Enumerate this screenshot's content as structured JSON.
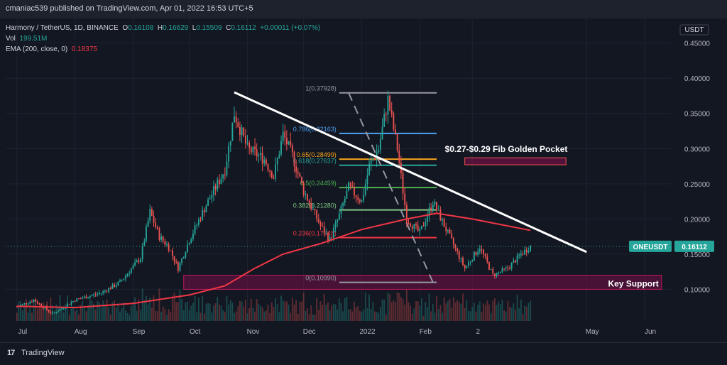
{
  "header": {
    "published": "cmaniac539 published on TradingView.com, Apr 01, 2022 16:53 UTC+5"
  },
  "legend": {
    "symbol": "Harmony / TetherUS, 1D, BINANCE",
    "o_label": "O",
    "o": "0.16108",
    "h_label": "H",
    "h": "0.16629",
    "l_label": "L",
    "l": "0.15509",
    "c_label": "C",
    "c": "0.16112",
    "change": "+0.00011 (+0.07%)",
    "vol_label": "Vol",
    "vol": "199.51M",
    "ema_label": "EMA (200, close, 0)",
    "ema": "0.18375"
  },
  "currency": "USDT",
  "price_tag": {
    "label": "ONEUSDT",
    "value": "0.16112"
  },
  "annotations": {
    "golden_pocket": "$0.27-$0.29 Fib Golden Pocket",
    "key_support": "Key Support"
  },
  "fib_levels": [
    {
      "label": "1(0.37928)",
      "value": 0.37928,
      "color": "#9598a1"
    },
    {
      "label": "0.786(0.32163)",
      "value": 0.32163,
      "color": "#4d9ff0"
    },
    {
      "label": "0.65(0.28499)",
      "value": 0.28499,
      "color": "#f7a21b"
    },
    {
      "label": "0.618(0.27637)",
      "value": 0.27637,
      "color": "#26a69a"
    },
    {
      "label": "0.5(0.24459)",
      "value": 0.24459,
      "color": "#4caf50"
    },
    {
      "label": "0.382(0.21280)",
      "value": 0.2128,
      "color": "#81c784"
    },
    {
      "label": "0.236(0.17348)",
      "value": 0.17348,
      "color": "#f23645"
    },
    {
      "label": "0(0.10990)",
      "value": 0.1099,
      "color": "#9598a1"
    }
  ],
  "colors": {
    "up": "#26a69a",
    "down": "#ef5350",
    "ema": "#f23645",
    "bg": "#131722"
  },
  "footer": {
    "brand": "TradingView"
  },
  "chart_data": {
    "type": "candlestick",
    "title": "Harmony / TetherUS, 1D, BINANCE",
    "y_axis": {
      "ticks": [
        "0.45000",
        "0.40000",
        "0.35000",
        "0.30000",
        "0.25000",
        "0.20000",
        "0.15000",
        "0.10000"
      ],
      "range": [
        0.055,
        0.485
      ]
    },
    "x_axis": {
      "ticks": [
        "Jul",
        "Aug",
        "Sep",
        "Oct",
        "Nov",
        "Dec",
        "2022",
        "Feb",
        "2",
        "May",
        "Jun"
      ]
    },
    "close_path": [
      {
        "d": "2021-07-01",
        "v": 0.075
      },
      {
        "d": "2021-07-10",
        "v": 0.085
      },
      {
        "d": "2021-07-20",
        "v": 0.065
      },
      {
        "d": "2021-08-01",
        "v": 0.085
      },
      {
        "d": "2021-08-15",
        "v": 0.095
      },
      {
        "d": "2021-08-25",
        "v": 0.11
      },
      {
        "d": "2021-09-05",
        "v": 0.145
      },
      {
        "d": "2021-09-10",
        "v": 0.21
      },
      {
        "d": "2021-09-15",
        "v": 0.175
      },
      {
        "d": "2021-09-20",
        "v": 0.16
      },
      {
        "d": "2021-09-25",
        "v": 0.13
      },
      {
        "d": "2021-10-01",
        "v": 0.17
      },
      {
        "d": "2021-10-10",
        "v": 0.22
      },
      {
        "d": "2021-10-20",
        "v": 0.27
      },
      {
        "d": "2021-10-25",
        "v": 0.35
      },
      {
        "d": "2021-11-01",
        "v": 0.3
      },
      {
        "d": "2021-11-10",
        "v": 0.285
      },
      {
        "d": "2021-11-15",
        "v": 0.26
      },
      {
        "d": "2021-11-20",
        "v": 0.32
      },
      {
        "d": "2021-11-25",
        "v": 0.29
      },
      {
        "d": "2021-12-01",
        "v": 0.24
      },
      {
        "d": "2021-12-10",
        "v": 0.19
      },
      {
        "d": "2021-12-15",
        "v": 0.17
      },
      {
        "d": "2021-12-20",
        "v": 0.205
      },
      {
        "d": "2021-12-25",
        "v": 0.245
      },
      {
        "d": "2022-01-01",
        "v": 0.225
      },
      {
        "d": "2022-01-05",
        "v": 0.275
      },
      {
        "d": "2022-01-10",
        "v": 0.3
      },
      {
        "d": "2022-01-15",
        "v": 0.37
      },
      {
        "d": "2022-01-20",
        "v": 0.3
      },
      {
        "d": "2022-01-25",
        "v": 0.2
      },
      {
        "d": "2022-02-01",
        "v": 0.18
      },
      {
        "d": "2022-02-08",
        "v": 0.225
      },
      {
        "d": "2022-02-15",
        "v": 0.185
      },
      {
        "d": "2022-02-25",
        "v": 0.13
      },
      {
        "d": "2022-03-05",
        "v": 0.16
      },
      {
        "d": "2022-03-12",
        "v": 0.12
      },
      {
        "d": "2022-03-20",
        "v": 0.13
      },
      {
        "d": "2022-03-27",
        "v": 0.15
      },
      {
        "d": "2022-04-01",
        "v": 0.16112
      }
    ],
    "ema_200": [
      {
        "d": "2021-07-01",
        "v": 0.076
      },
      {
        "d": "2021-08-01",
        "v": 0.074
      },
      {
        "d": "2021-09-01",
        "v": 0.08
      },
      {
        "d": "2021-10-01",
        "v": 0.092
      },
      {
        "d": "2021-10-20",
        "v": 0.105
      },
      {
        "d": "2021-11-05",
        "v": 0.13
      },
      {
        "d": "2021-11-20",
        "v": 0.15
      },
      {
        "d": "2021-12-10",
        "v": 0.165
      },
      {
        "d": "2022-01-01",
        "v": 0.185
      },
      {
        "d": "2022-01-25",
        "v": 0.2
      },
      {
        "d": "2022-02-10",
        "v": 0.208
      },
      {
        "d": "2022-03-01",
        "v": 0.2
      },
      {
        "d": "2022-04-01",
        "v": 0.18375
      }
    ],
    "trendline": {
      "from": {
        "d": "2021-10-25",
        "v": 0.38
      },
      "to": {
        "d": "2022-05-01",
        "v": 0.153
      }
    },
    "key_support_zone": {
      "from": "2021-09-28",
      "to": "2022-06-10",
      "low": 0.1,
      "high": 0.12
    },
    "golden_pocket_zone": {
      "from": "2022-02-25",
      "to": "2022-04-20",
      "low": 0.277,
      "high": 0.287
    }
  }
}
